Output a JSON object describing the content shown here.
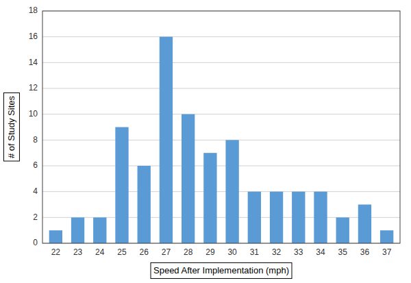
{
  "chart_data": {
    "type": "bar",
    "x": [
      22,
      23,
      24,
      25,
      26,
      27,
      28,
      29,
      30,
      31,
      32,
      33,
      34,
      35,
      36,
      37
    ],
    "values": [
      1,
      2,
      2,
      9,
      6,
      16,
      10,
      7,
      8,
      4,
      4,
      4,
      4,
      2,
      3,
      1
    ],
    "color": "#5B9BD5",
    "x_label": "Speed After Implementation (mph)",
    "y_label": "# of Study Sites",
    "xlim": [
      21.4,
      37.6
    ],
    "xticks": [
      22,
      23,
      24,
      25,
      26,
      27,
      28,
      29,
      30,
      31,
      32,
      33,
      34,
      35,
      36,
      37
    ],
    "ylim": [
      0,
      18
    ],
    "yticks": [
      0,
      2,
      4,
      6,
      8,
      10,
      12,
      14,
      16,
      18
    ],
    "grid": true
  }
}
